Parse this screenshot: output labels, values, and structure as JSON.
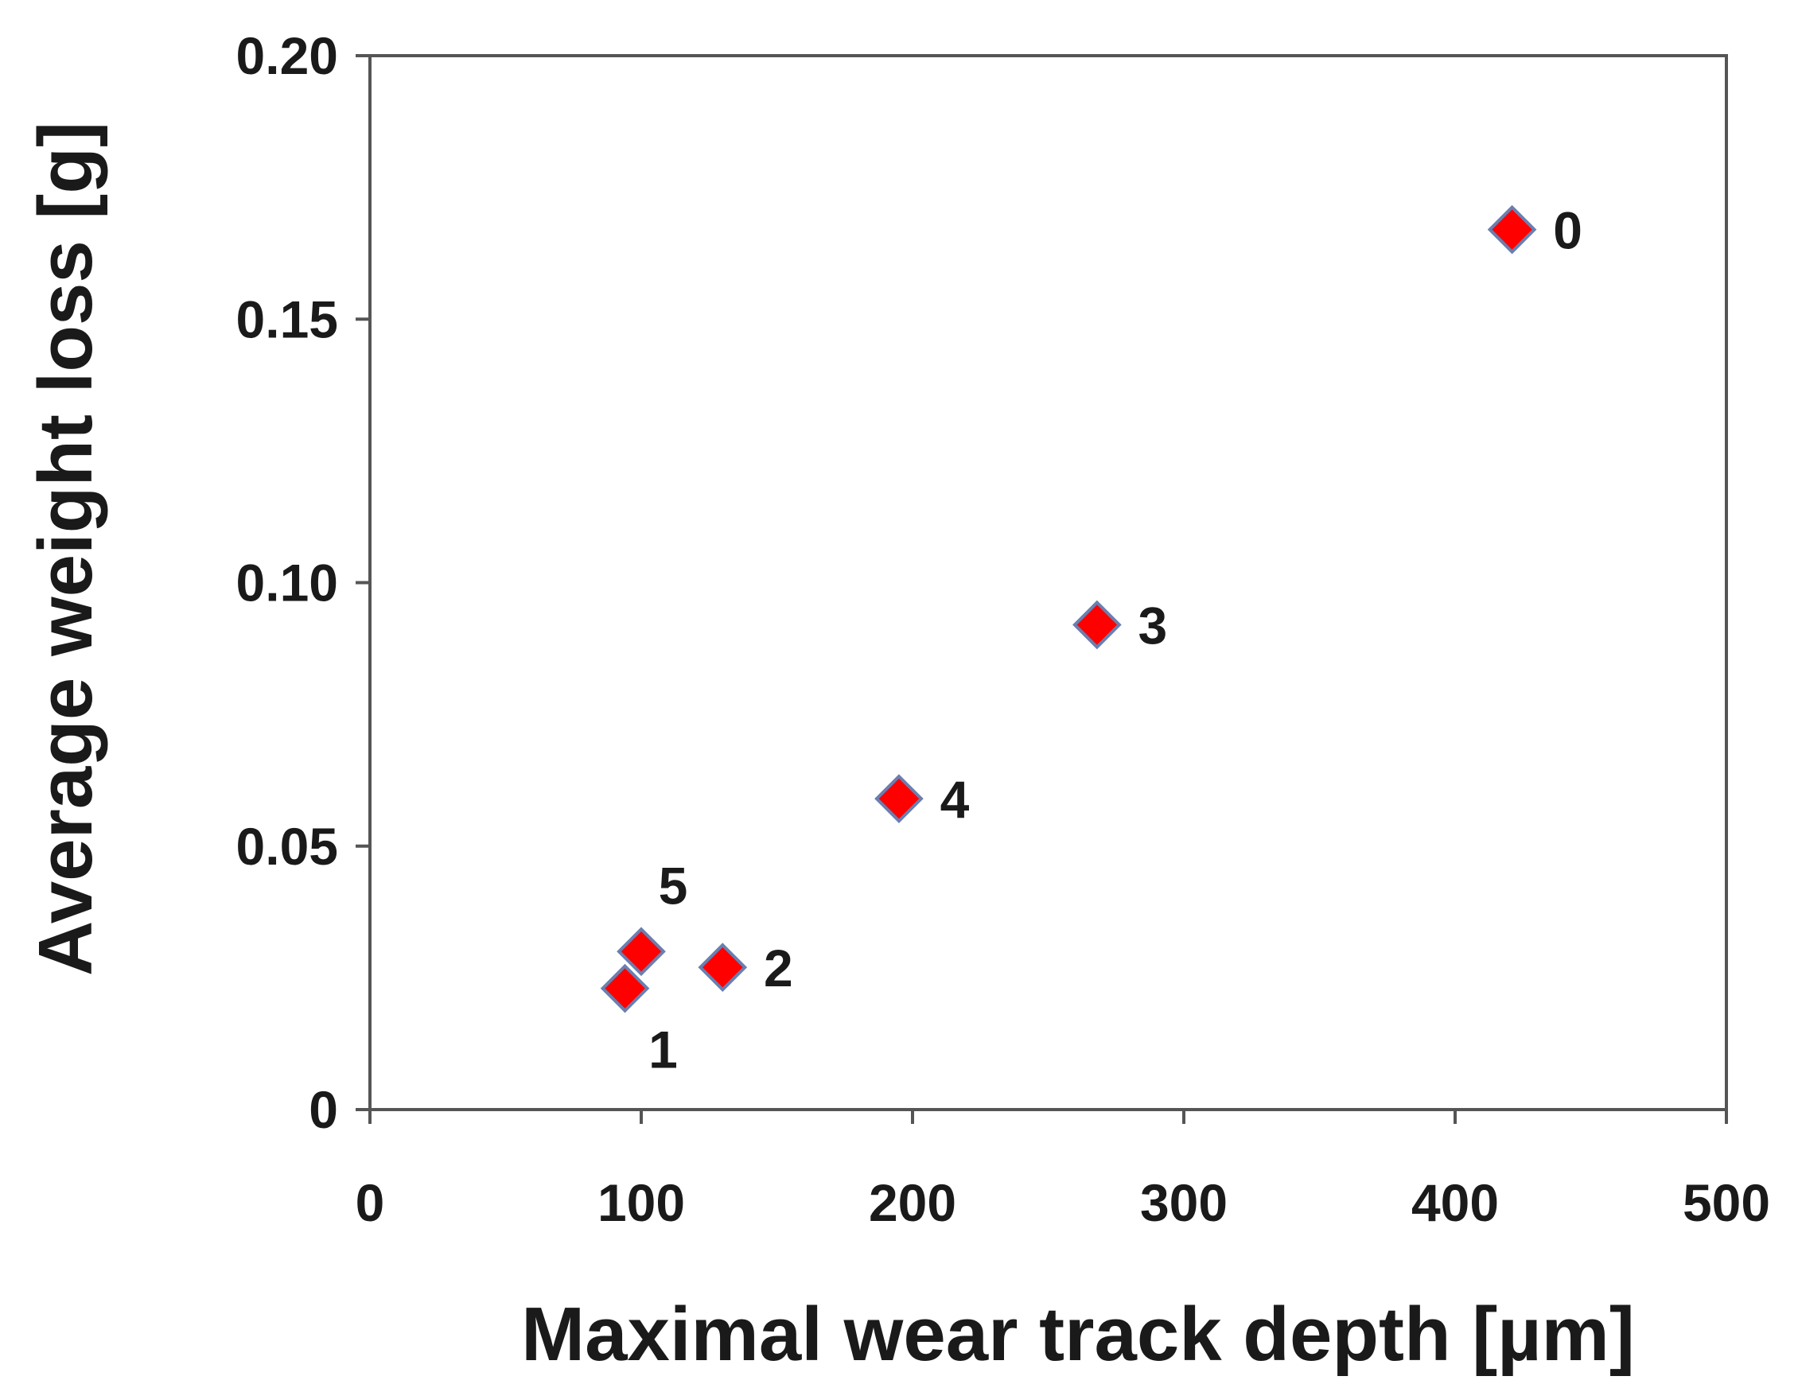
{
  "chart_data": {
    "type": "scatter",
    "xlabel": "Maximal wear track depth [µm]",
    "ylabel": "Average weight loss [g]",
    "xlim": [
      0,
      500
    ],
    "ylim": [
      0,
      0.2
    ],
    "x_ticks": [
      0,
      100,
      200,
      300,
      400,
      500
    ],
    "x_tick_labels": [
      "0",
      "100",
      "200",
      "300",
      "400",
      "500"
    ],
    "y_ticks": [
      0,
      0.05,
      0.1,
      0.15,
      0.2
    ],
    "y_tick_labels": [
      "0",
      "0.05",
      "0.10",
      "0.15",
      "0.20"
    ],
    "grid": false,
    "marker": "diamond",
    "marker_color": "#ff0000",
    "marker_edge_color": "#6a7fb0",
    "points": [
      {
        "label": "0",
        "x": 421,
        "y": 0.167,
        "label_pos": "right"
      },
      {
        "label": "3",
        "x": 268,
        "y": 0.092,
        "label_pos": "right"
      },
      {
        "label": "4",
        "x": 195,
        "y": 0.059,
        "label_pos": "right"
      },
      {
        "label": "5",
        "x": 100,
        "y": 0.03,
        "label_pos": "above"
      },
      {
        "label": "2",
        "x": 130,
        "y": 0.027,
        "label_pos": "right"
      },
      {
        "label": "1",
        "x": 94,
        "y": 0.023,
        "label_pos": "below"
      }
    ]
  }
}
